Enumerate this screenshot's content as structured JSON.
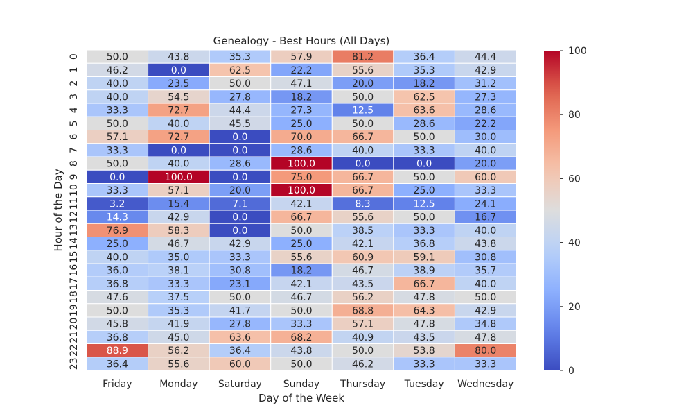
{
  "chart_data": {
    "type": "heatmap",
    "title": "Genealogy - Best Hours (All Days)",
    "xlabel": "Day of the Week",
    "ylabel": "Hour of the Day",
    "x_categories": [
      "Friday",
      "Monday",
      "Saturday",
      "Sunday",
      "Thursday",
      "Tuesday",
      "Wednesday"
    ],
    "y_categories": [
      "0",
      "1",
      "2",
      "3",
      "4",
      "5",
      "6",
      "7",
      "8",
      "9",
      "10",
      "11",
      "12",
      "13",
      "14",
      "15",
      "16",
      "17",
      "18",
      "19",
      "20",
      "21",
      "22",
      "23"
    ],
    "values": [
      [
        50.0,
        43.8,
        35.3,
        57.9,
        81.2,
        36.4,
        44.4
      ],
      [
        46.2,
        0.0,
        62.5,
        22.2,
        55.6,
        35.3,
        42.9
      ],
      [
        40.0,
        23.5,
        50.0,
        47.1,
        20.0,
        18.2,
        31.2
      ],
      [
        40.0,
        54.5,
        27.8,
        18.2,
        50.0,
        62.5,
        27.3
      ],
      [
        33.3,
        72.7,
        44.4,
        27.3,
        12.5,
        63.6,
        28.6
      ],
      [
        50.0,
        40.0,
        45.5,
        25.0,
        50.0,
        28.6,
        22.2
      ],
      [
        57.1,
        72.7,
        0.0,
        70.0,
        66.7,
        50.0,
        30.0
      ],
      [
        33.3,
        0.0,
        0.0,
        28.6,
        40.0,
        33.3,
        40.0
      ],
      [
        50.0,
        40.0,
        28.6,
        100.0,
        0.0,
        0.0,
        20.0
      ],
      [
        0.0,
        100.0,
        0.0,
        75.0,
        66.7,
        50.0,
        60.0
      ],
      [
        33.3,
        57.1,
        20.0,
        100.0,
        66.7,
        25.0,
        33.3
      ],
      [
        3.2,
        15.4,
        7.1,
        42.1,
        8.3,
        12.5,
        24.1
      ],
      [
        14.3,
        42.9,
        0.0,
        66.7,
        55.6,
        50.0,
        16.7
      ],
      [
        76.9,
        58.3,
        0.0,
        50.0,
        38.5,
        33.3,
        40.0
      ],
      [
        25.0,
        46.7,
        42.9,
        25.0,
        42.1,
        36.8,
        43.8
      ],
      [
        40.0,
        35.0,
        33.3,
        55.6,
        60.9,
        59.1,
        30.8
      ],
      [
        36.0,
        38.1,
        30.8,
        18.2,
        46.7,
        38.9,
        35.7
      ],
      [
        36.8,
        33.3,
        23.1,
        42.1,
        43.5,
        66.7,
        40.0
      ],
      [
        47.6,
        37.5,
        50.0,
        46.7,
        56.2,
        47.8,
        50.0
      ],
      [
        50.0,
        35.3,
        41.7,
        50.0,
        68.8,
        64.3,
        42.9
      ],
      [
        45.8,
        41.9,
        27.8,
        33.3,
        57.1,
        47.8,
        34.8
      ],
      [
        36.8,
        45.0,
        63.6,
        68.2,
        40.9,
        43.5,
        47.8
      ],
      [
        88.9,
        56.2,
        36.4,
        43.8,
        50.0,
        53.8,
        80.0
      ],
      [
        36.4,
        55.6,
        60.0,
        50.0,
        46.2,
        33.3,
        33.3
      ]
    ],
    "value_format": "one decimal",
    "colormap": "coolwarm",
    "colorbar": {
      "range": [
        0,
        100
      ],
      "ticks": [
        "0",
        "20",
        "40",
        "60",
        "80",
        "100"
      ]
    },
    "grid": false
  }
}
